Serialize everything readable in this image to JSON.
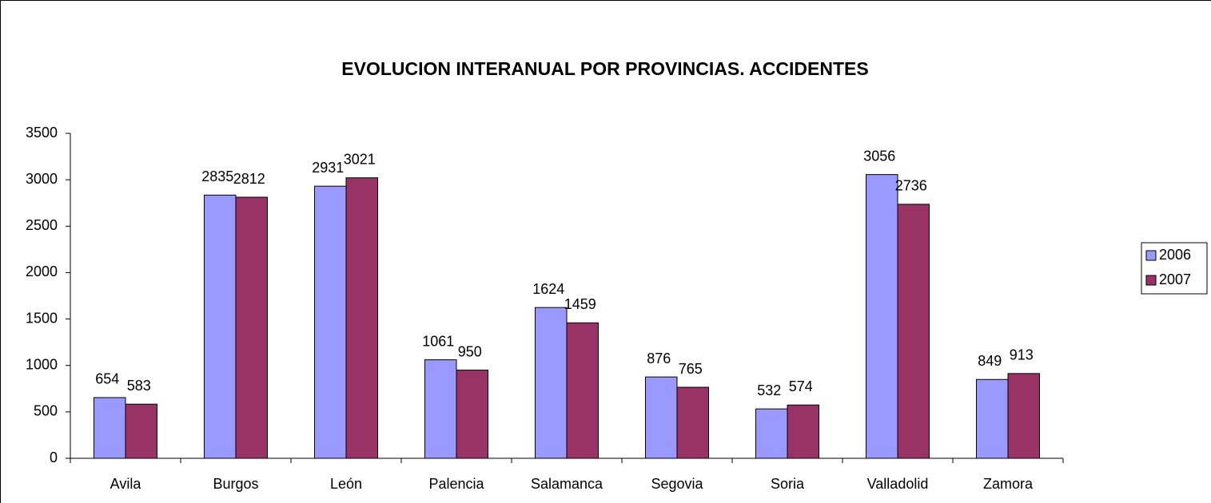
{
  "chart_data": {
    "type": "bar",
    "title": "EVOLUCION INTERANUAL POR PROVINCIAS. ACCIDENTES",
    "categories": [
      "Avila",
      "Burgos",
      "León",
      "Palencia",
      "Salamanca",
      "Segovia",
      "Soria",
      "Valladolid",
      "Zamora"
    ],
    "series": [
      {
        "name": "2006",
        "color": "#9999ff",
        "values": [
          654,
          2835,
          2931,
          1061,
          1624,
          876,
          532,
          3056,
          849
        ]
      },
      {
        "name": "2007",
        "color": "#993366",
        "values": [
          583,
          2812,
          3021,
          950,
          1459,
          765,
          574,
          2736,
          913
        ]
      }
    ],
    "ylim": [
      0,
      3500
    ],
    "yticks": [
      0,
      500,
      1000,
      1500,
      2000,
      2500,
      3000,
      3500
    ],
    "grid": false,
    "legend": "right"
  }
}
